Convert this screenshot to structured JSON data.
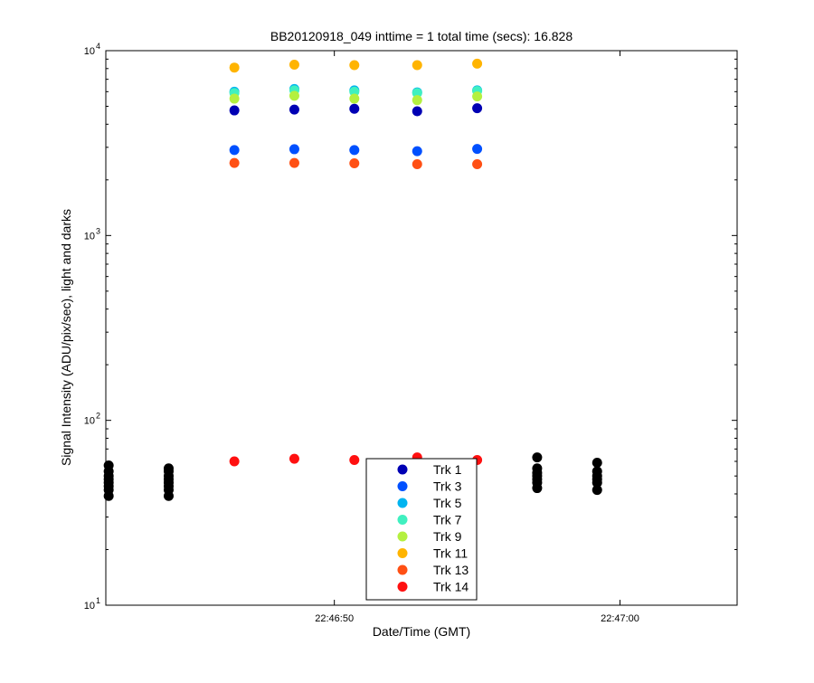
{
  "chart_data": {
    "type": "scatter",
    "title": "BB20120918_049 inttime = 1 total time (secs): 16.828",
    "xlabel": "Date/Time (GMT)",
    "ylabel": "Signal Intensity (ADU/pix/sec), light and darks",
    "x_unit": "seconds after 22:46:40 GMT",
    "xlim": [
      0,
      22.1
    ],
    "ylog": true,
    "ylim": [
      10,
      10000
    ],
    "x_ticks": [
      {
        "x": 8,
        "label": "22:46:50"
      },
      {
        "x": 18,
        "label": "22:47:00"
      }
    ],
    "y_ticks": [
      {
        "y": 10,
        "base": "10",
        "exp": "1"
      },
      {
        "y": 100,
        "base": "10",
        "exp": "2"
      },
      {
        "y": 1000,
        "base": "10",
        "exp": "3"
      },
      {
        "y": 10000,
        "base": "10",
        "exp": "4"
      }
    ],
    "legend_position": "bottom-center",
    "series": [
      {
        "name": "Trk 1",
        "color": "#0000b4",
        "x": [
          4.5,
          6.6,
          8.7,
          10.9,
          13.0
        ],
        "y": [
          4750,
          4800,
          4850,
          4700,
          4880
        ]
      },
      {
        "name": "Trk 3",
        "color": "#0050ff",
        "x": [
          4.5,
          6.6,
          8.7,
          10.9,
          13.0
        ],
        "y": [
          2900,
          2930,
          2900,
          2860,
          2940
        ]
      },
      {
        "name": "Trk 5",
        "color": "#00b4f0",
        "x": [
          4.5,
          6.6,
          8.7,
          10.9,
          13.0
        ],
        "y": [
          6000,
          6200,
          6100,
          5950,
          6100
        ]
      },
      {
        "name": "Trk 7",
        "color": "#40f0c0",
        "x": [
          4.5,
          6.6,
          8.7,
          10.9,
          13.0
        ],
        "y": [
          5900,
          6100,
          6000,
          5900,
          6050
        ]
      },
      {
        "name": "Trk 9",
        "color": "#b4f040",
        "x": [
          4.5,
          6.6,
          8.7,
          10.9,
          13.0
        ],
        "y": [
          5500,
          5700,
          5500,
          5400,
          5650
        ]
      },
      {
        "name": "Trk 11",
        "color": "#ffb400",
        "x": [
          4.5,
          6.6,
          8.7,
          10.9,
          13.0
        ],
        "y": [
          8100,
          8400,
          8350,
          8350,
          8500
        ]
      },
      {
        "name": "Trk 13",
        "color": "#ff5014",
        "x": [
          4.5,
          6.6,
          8.7,
          10.9,
          13.0
        ],
        "y": [
          2470,
          2470,
          2460,
          2430,
          2430
        ]
      },
      {
        "name": "Trk 14",
        "color": "#ff1010",
        "x": [
          4.5,
          6.6,
          8.7,
          10.9,
          13.0
        ],
        "y": [
          60,
          62,
          61,
          63,
          61
        ]
      },
      {
        "name": "",
        "color": "#000000",
        "x": [
          0.1,
          0.1,
          0.1,
          0.1,
          0.1,
          0.1,
          0.1,
          0.1,
          2.2,
          2.2,
          2.2,
          2.2,
          2.2,
          2.2,
          2.2,
          2.2,
          15.1,
          15.1,
          15.1,
          15.1,
          15.1,
          15.1,
          15.1,
          17.2,
          17.2,
          17.2,
          17.2,
          17.2,
          17.2
        ],
        "y": [
          39,
          42,
          44,
          46,
          48,
          50,
          53,
          57,
          39,
          42,
          44,
          46,
          48,
          50,
          53,
          55,
          43,
          46,
          48,
          50,
          52,
          55,
          63,
          42,
          46,
          48,
          50,
          53,
          59
        ]
      }
    ]
  }
}
